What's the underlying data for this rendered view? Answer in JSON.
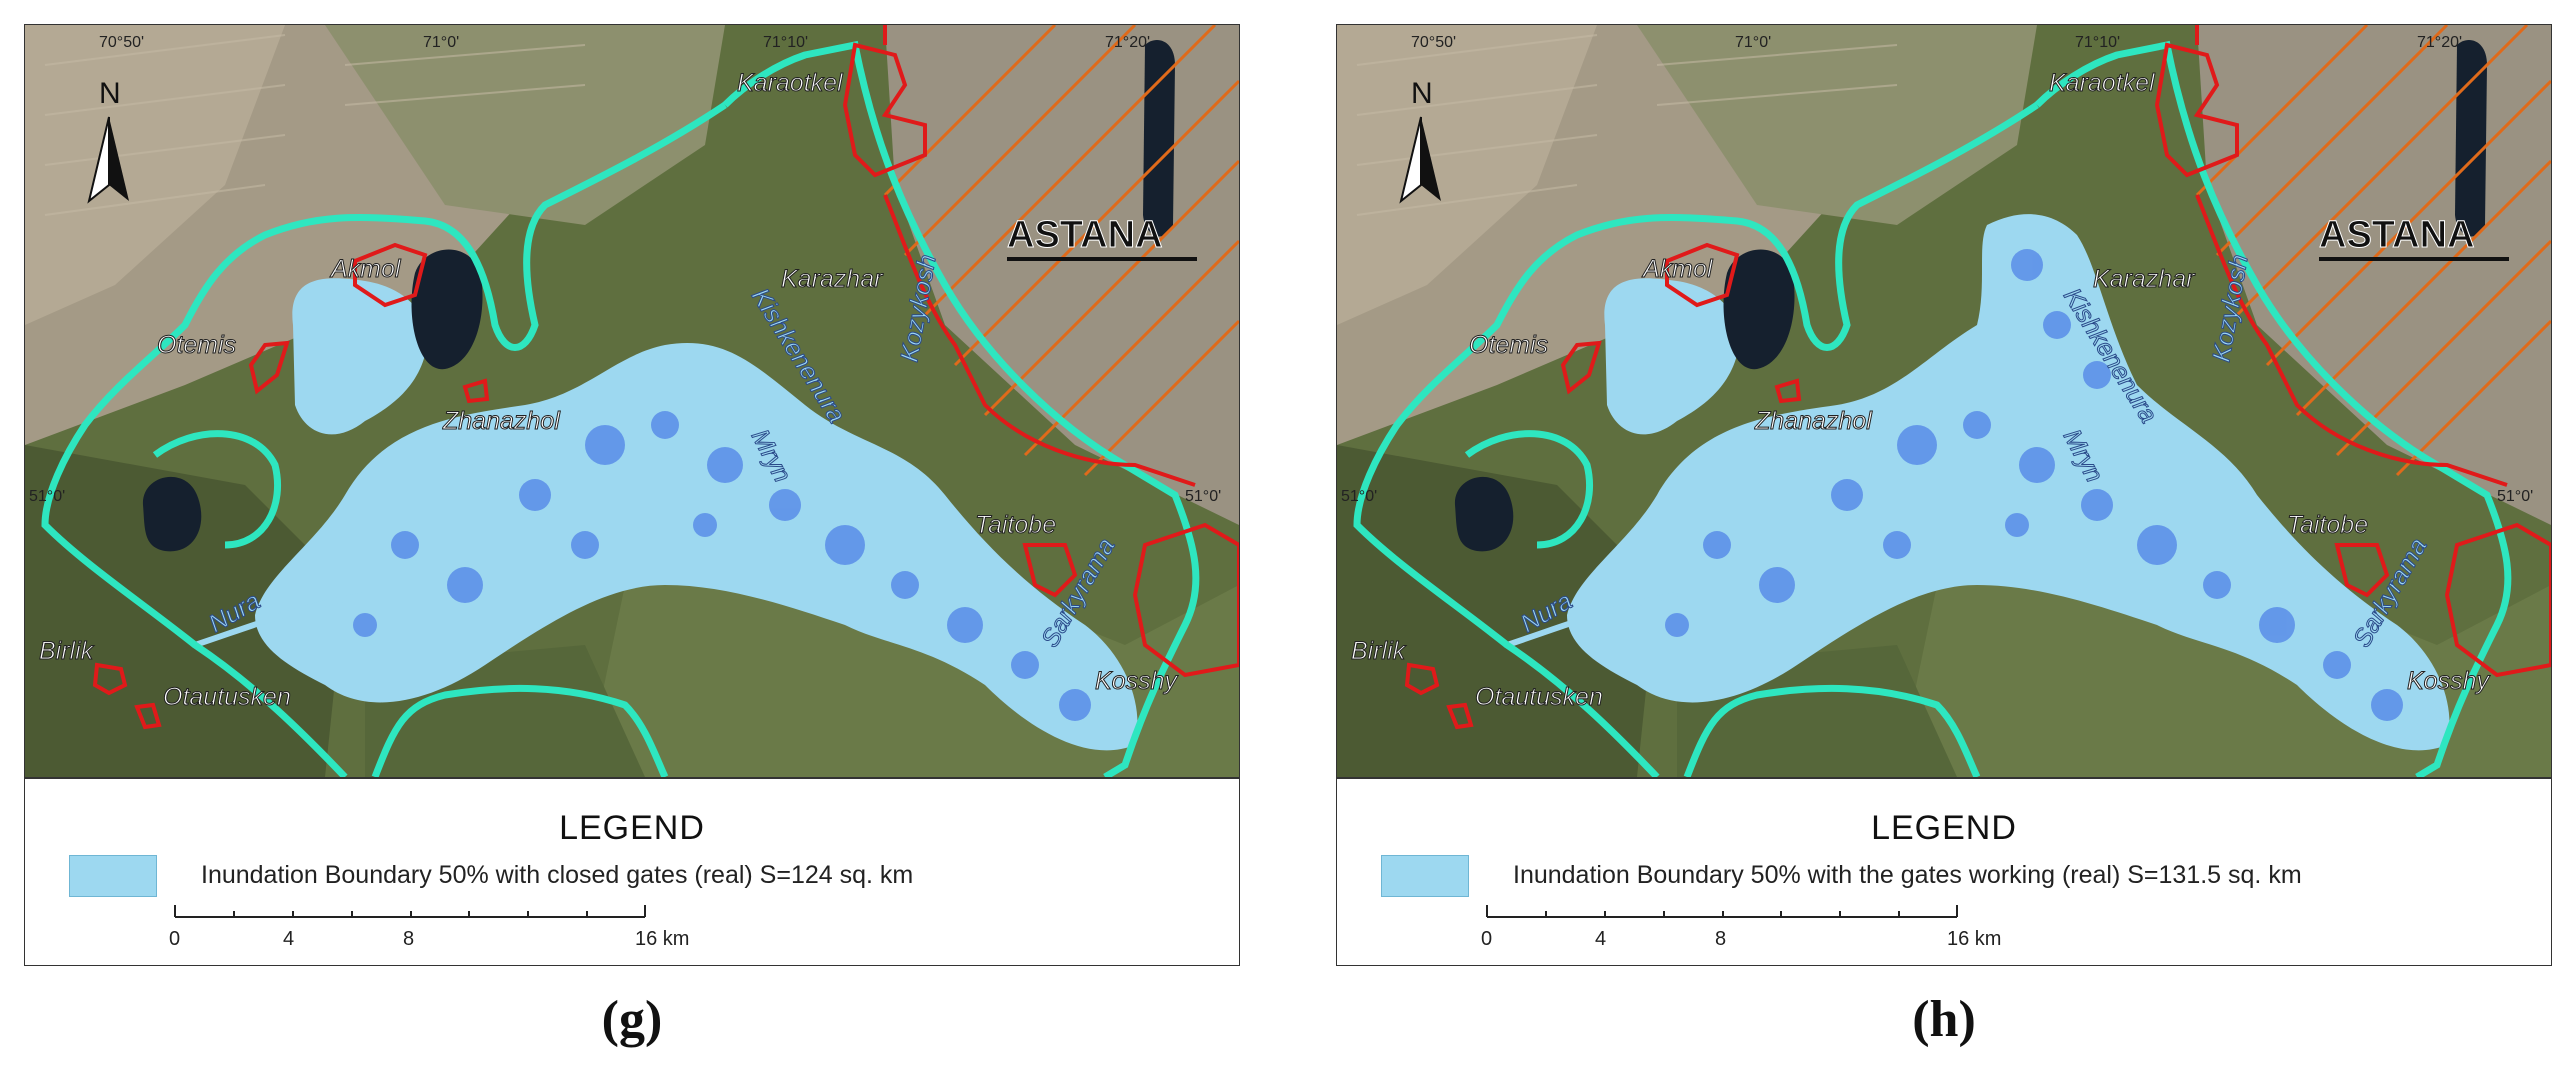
{
  "panels": [
    {
      "id": "g",
      "label": "(g)",
      "legend_title": "LEGEND",
      "legend_text": "Inundation Boundary 50% with closed gates (real) S=124 sq. km",
      "flood_color": "#9dd8f0"
    },
    {
      "id": "h",
      "label": "(h)",
      "legend_title": "LEGEND",
      "legend_text": "Inundation Boundary 50%  with the gates working (real) S=131.5 sq. km",
      "flood_color": "#9dd8f0"
    }
  ],
  "map": {
    "north_label": "N",
    "city_label": "ASTANA",
    "coord_top": [
      "70°50'",
      "71°0'",
      "71°10'",
      "71°20'"
    ],
    "coord_side": [
      "51°0'",
      "51°0'"
    ],
    "places": {
      "karaotkel": "Karaotkel",
      "akmol": "Akmol",
      "otemis": "Otemis",
      "karazhar": "Karazhar",
      "zhanazhol": "Zhanazhol",
      "taitobe": "Taitobe",
      "birlik": "Birlik",
      "otautusken": "Otautusken",
      "kosshy": "Kosshy"
    },
    "rivers": {
      "nura": "Nura",
      "kishkenenura": "Kishkenenura",
      "mryn": "Mryn",
      "kozykosh": "Kozykosh",
      "sarkyrama": "Sarkyrama"
    },
    "scale_ticks": [
      "0",
      "4",
      "8",
      "16 km"
    ],
    "colors": {
      "boundary": "#2ee6c0",
      "settlement": "#e01a1a",
      "hatch": "#e06a1a",
      "flood": "#9dd8f0",
      "flood_dark": "#5a8ee8",
      "lake": "#9dd8f0",
      "dark_lake": "#15202e"
    }
  }
}
